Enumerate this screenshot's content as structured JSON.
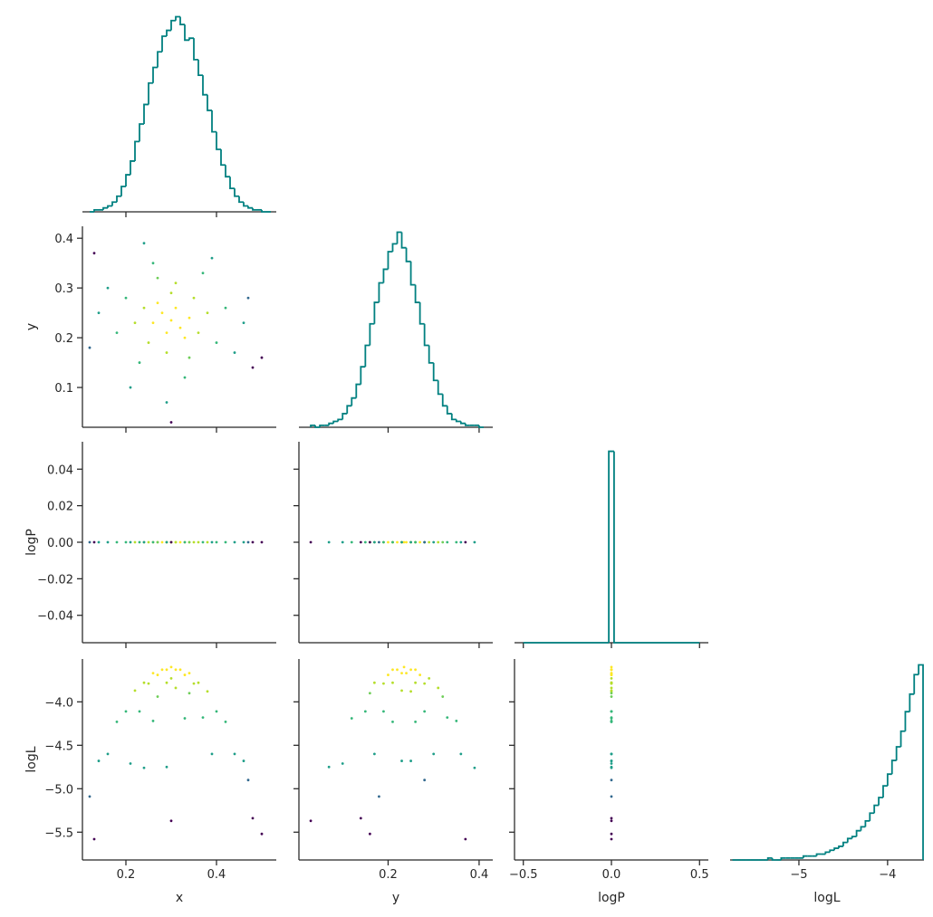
{
  "chart_data": [
    {
      "type": "histogram",
      "color": "#008080",
      "bins": [
        0.12,
        0.13,
        0.14,
        0.15,
        0.16,
        0.17,
        0.18,
        0.19,
        0.2,
        0.21,
        0.22,
        0.23,
        0.24,
        0.25,
        0.26,
        0.27,
        0.28,
        0.29,
        0.3,
        0.31,
        0.32,
        0.33,
        0.34,
        0.35,
        0.36,
        0.37,
        0.38,
        0.39,
        0.4,
        0.41,
        0.42,
        0.43,
        0.44,
        0.45,
        0.46,
        0.47,
        0.48,
        0.49,
        0.5,
        0.51,
        0.52
      ],
      "counts": [
        0,
        1,
        1,
        2,
        3,
        5,
        8,
        13,
        19,
        26,
        36,
        45,
        55,
        66,
        74,
        82,
        90,
        93,
        98,
        100,
        96,
        88,
        89,
        78,
        70,
        60,
        52,
        41,
        32,
        24,
        18,
        12,
        8,
        5,
        3,
        2,
        1,
        1,
        0,
        0
      ],
      "xlim": [
        0.104,
        0.532
      ],
      "ylim": [
        0,
        103
      ],
      "xticks": [
        0.2,
        0.4
      ]
    },
    {
      "type": "scatter",
      "ylabel": "y",
      "xlim": [
        0.104,
        0.532
      ],
      "ylim": [
        0.02,
        0.424
      ],
      "xticks": [
        0.2,
        0.4
      ],
      "yticks": [
        0.1,
        0.2,
        0.3,
        0.4
      ],
      "x": [
        0.3,
        0.28,
        0.32,
        0.29,
        0.31,
        0.26,
        0.34,
        0.27,
        0.33,
        0.3,
        0.25,
        0.35,
        0.24,
        0.36,
        0.29,
        0.31,
        0.22,
        0.38,
        0.27,
        0.34,
        0.2,
        0.4,
        0.23,
        0.37,
        0.18,
        0.42,
        0.26,
        0.33,
        0.16,
        0.44,
        0.21,
        0.39,
        0.14,
        0.46,
        0.29,
        0.24,
        0.13,
        0.48,
        0.5,
        0.3,
        0.12,
        0.47
      ],
      "y": [
        0.235,
        0.25,
        0.22,
        0.21,
        0.26,
        0.23,
        0.24,
        0.27,
        0.2,
        0.29,
        0.19,
        0.28,
        0.26,
        0.21,
        0.17,
        0.31,
        0.23,
        0.25,
        0.32,
        0.16,
        0.28,
        0.19,
        0.15,
        0.33,
        0.21,
        0.26,
        0.35,
        0.12,
        0.3,
        0.17,
        0.1,
        0.36,
        0.25,
        0.23,
        0.07,
        0.39,
        0.37,
        0.14,
        0.16,
        0.03,
        0.18,
        0.28
      ],
      "colors": [
        "#fde725",
        "#fde725",
        "#fde725",
        "#fde725",
        "#fde725",
        "#fde725",
        "#fde725",
        "#fde725",
        "#fde725",
        "#b5de2b",
        "#b5de2b",
        "#b5de2b",
        "#b5de2b",
        "#b5de2b",
        "#b5de2b",
        "#b5de2b",
        "#b5de2b",
        "#b5de2b",
        "#6ece58",
        "#6ece58",
        "#35b779",
        "#35b779",
        "#35b779",
        "#35b779",
        "#35b779",
        "#35b779",
        "#35b779",
        "#35b779",
        "#1f9e89",
        "#1f9e89",
        "#1f9e89",
        "#1f9e89",
        "#1f9e89",
        "#1f9e89",
        "#1f9e89",
        "#1f9e89",
        "#440154",
        "#440154",
        "#440154",
        "#440154",
        "#31688e",
        "#31688e"
      ]
    },
    {
      "type": "histogram",
      "color": "#008080",
      "bins": [
        0.03,
        0.04,
        0.05,
        0.06,
        0.07,
        0.08,
        0.09,
        0.1,
        0.11,
        0.12,
        0.13,
        0.14,
        0.15,
        0.16,
        0.17,
        0.18,
        0.19,
        0.2,
        0.21,
        0.22,
        0.23,
        0.24,
        0.25,
        0.26,
        0.27,
        0.28,
        0.29,
        0.3,
        0.31,
        0.32,
        0.33,
        0.34,
        0.35,
        0.36,
        0.37,
        0.38,
        0.39,
        0.4,
        0.41
      ],
      "counts": [
        1,
        0,
        1,
        1,
        2,
        3,
        4,
        7,
        11,
        15,
        22,
        31,
        42,
        53,
        64,
        74,
        81,
        90,
        94,
        100,
        92,
        85,
        73,
        64,
        53,
        42,
        33,
        24,
        17,
        11,
        7,
        4,
        3,
        2,
        1,
        1,
        1,
        0
      ],
      "xlim": [
        0.004,
        0.43
      ],
      "ylim": [
        0,
        103
      ],
      "xticks": [
        0.2,
        0.4
      ]
    },
    {
      "type": "scatter",
      "ylabel": "logP",
      "xlim": [
        0.104,
        0.532
      ],
      "ylim": [
        -0.055,
        0.055
      ],
      "xticks": [
        0.2,
        0.4
      ],
      "yticks": [
        {
          "value": -0.04,
          "label": "−0.04"
        },
        {
          "value": -0.02,
          "label": "−0.02"
        },
        {
          "value": 0,
          "label": "0.00"
        },
        0.02,
        0.04
      ],
      "x": [
        0.3,
        0.28,
        0.32,
        0.29,
        0.31,
        0.26,
        0.34,
        0.27,
        0.33,
        0.3,
        0.25,
        0.35,
        0.24,
        0.36,
        0.29,
        0.31,
        0.22,
        0.38,
        0.27,
        0.34,
        0.2,
        0.4,
        0.23,
        0.37,
        0.18,
        0.42,
        0.26,
        0.33,
        0.16,
        0.44,
        0.21,
        0.39,
        0.14,
        0.46,
        0.29,
        0.24,
        0.13,
        0.48,
        0.5,
        0.3,
        0.12,
        0.47
      ],
      "y": [
        0,
        0,
        0,
        0,
        0,
        0,
        0,
        0,
        0,
        0,
        0,
        0,
        0,
        0,
        0,
        0,
        0,
        0,
        0,
        0,
        0,
        0,
        0,
        0,
        0,
        0,
        0,
        0,
        0,
        0,
        0,
        0,
        0,
        0,
        0,
        0,
        0,
        0,
        0,
        0,
        0,
        0
      ],
      "colors": [
        "#fde725",
        "#fde725",
        "#fde725",
        "#fde725",
        "#fde725",
        "#fde725",
        "#fde725",
        "#fde725",
        "#fde725",
        "#b5de2b",
        "#b5de2b",
        "#b5de2b",
        "#b5de2b",
        "#b5de2b",
        "#b5de2b",
        "#b5de2b",
        "#b5de2b",
        "#b5de2b",
        "#6ece58",
        "#6ece58",
        "#35b779",
        "#35b779",
        "#35b779",
        "#35b779",
        "#35b779",
        "#35b779",
        "#35b779",
        "#35b779",
        "#1f9e89",
        "#1f9e89",
        "#1f9e89",
        "#1f9e89",
        "#1f9e89",
        "#1f9e89",
        "#1f9e89",
        "#1f9e89",
        "#440154",
        "#440154",
        "#440154",
        "#440154",
        "#31688e",
        "#31688e"
      ]
    },
    {
      "type": "scatter",
      "xlim": [
        0.004,
        0.43
      ],
      "ylim": [
        -0.055,
        0.055
      ],
      "xticks": [
        0.2,
        0.4
      ],
      "yticks": [
        -0.04,
        -0.02,
        0,
        0.02,
        0.04
      ],
      "x": [
        0.235,
        0.25,
        0.22,
        0.21,
        0.26,
        0.23,
        0.24,
        0.27,
        0.2,
        0.29,
        0.19,
        0.28,
        0.26,
        0.21,
        0.17,
        0.31,
        0.23,
        0.25,
        0.32,
        0.16,
        0.28,
        0.19,
        0.15,
        0.33,
        0.21,
        0.26,
        0.35,
        0.12,
        0.3,
        0.17,
        0.1,
        0.36,
        0.25,
        0.23,
        0.07,
        0.39,
        0.37,
        0.14,
        0.16,
        0.03,
        0.18,
        0.28
      ],
      "y": [
        0,
        0,
        0,
        0,
        0,
        0,
        0,
        0,
        0,
        0,
        0,
        0,
        0,
        0,
        0,
        0,
        0,
        0,
        0,
        0,
        0,
        0,
        0,
        0,
        0,
        0,
        0,
        0,
        0,
        0,
        0,
        0,
        0,
        0,
        0,
        0,
        0,
        0,
        0,
        0,
        0,
        0
      ],
      "colors": [
        "#fde725",
        "#fde725",
        "#fde725",
        "#fde725",
        "#fde725",
        "#fde725",
        "#fde725",
        "#fde725",
        "#fde725",
        "#b5de2b",
        "#b5de2b",
        "#b5de2b",
        "#b5de2b",
        "#b5de2b",
        "#b5de2b",
        "#b5de2b",
        "#b5de2b",
        "#b5de2b",
        "#6ece58",
        "#6ece58",
        "#35b779",
        "#35b779",
        "#35b779",
        "#35b779",
        "#35b779",
        "#35b779",
        "#35b779",
        "#35b779",
        "#1f9e89",
        "#1f9e89",
        "#1f9e89",
        "#1f9e89",
        "#1f9e89",
        "#1f9e89",
        "#1f9e89",
        "#1f9e89",
        "#440154",
        "#440154",
        "#440154",
        "#440154",
        "#31688e",
        "#31688e"
      ]
    },
    {
      "type": "histogram",
      "color": "#008080",
      "bins": [
        -0.5,
        -0.015,
        0.015,
        0.5
      ],
      "counts": [
        0,
        100,
        0
      ],
      "xlim": [
        -0.55,
        0.55
      ],
      "ylim": [
        0,
        105
      ],
      "xticks": [
        -0.5,
        0,
        0.5
      ]
    },
    {
      "type": "scatter",
      "xlabel": "x",
      "ylabel": "logL",
      "xlim": [
        0.104,
        0.532
      ],
      "ylim": [
        -5.82,
        -3.507
      ],
      "xticks": [
        0.2,
        0.4
      ],
      "yticks": [
        {
          "value": -5.5,
          "label": "−5.5"
        },
        {
          "value": -5.0,
          "label": "−5.0"
        },
        {
          "value": -4.5,
          "label": "−4.5"
        },
        {
          "value": -4.0,
          "label": "−4.0"
        }
      ],
      "x": [
        0.3,
        0.28,
        0.32,
        0.29,
        0.31,
        0.26,
        0.34,
        0.27,
        0.33,
        0.3,
        0.25,
        0.35,
        0.24,
        0.36,
        0.29,
        0.31,
        0.22,
        0.38,
        0.27,
        0.34,
        0.2,
        0.4,
        0.23,
        0.37,
        0.18,
        0.42,
        0.26,
        0.33,
        0.16,
        0.44,
        0.21,
        0.39,
        0.14,
        0.46,
        0.29,
        0.24,
        0.13,
        0.48,
        0.5,
        0.3,
        0.12,
        0.47
      ],
      "y": [
        -3.6,
        -3.63,
        -3.63,
        -3.63,
        -3.63,
        -3.67,
        -3.67,
        -3.69,
        -3.69,
        -3.73,
        -3.79,
        -3.79,
        -3.78,
        -3.78,
        -3.78,
        -3.84,
        -3.87,
        -3.88,
        -3.94,
        -3.9,
        -4.11,
        -4.11,
        -4.11,
        -4.18,
        -4.23,
        -4.23,
        -4.22,
        -4.19,
        -4.6,
        -4.6,
        -4.71,
        -4.6,
        -4.68,
        -4.68,
        -4.75,
        -4.76,
        -5.58,
        -5.34,
        -5.52,
        -5.37,
        -5.09,
        -4.9
      ],
      "colors": [
        "#fde725",
        "#fde725",
        "#fde725",
        "#fde725",
        "#fde725",
        "#fde725",
        "#fde725",
        "#fde725",
        "#fde725",
        "#b5de2b",
        "#b5de2b",
        "#b5de2b",
        "#b5de2b",
        "#b5de2b",
        "#b5de2b",
        "#b5de2b",
        "#b5de2b",
        "#b5de2b",
        "#6ece58",
        "#6ece58",
        "#35b779",
        "#35b779",
        "#35b779",
        "#35b779",
        "#35b779",
        "#35b779",
        "#35b779",
        "#35b779",
        "#1f9e89",
        "#1f9e89",
        "#1f9e89",
        "#1f9e89",
        "#1f9e89",
        "#1f9e89",
        "#1f9e89",
        "#1f9e89",
        "#440154",
        "#440154",
        "#440154",
        "#440154",
        "#31688e",
        "#31688e"
      ]
    },
    {
      "type": "scatter",
      "xlabel": "y",
      "xlim": [
        0.004,
        0.43
      ],
      "ylim": [
        -5.82,
        -3.507
      ],
      "xticks": [
        0.2,
        0.4
      ],
      "yticks": [
        -5.5,
        -5.0,
        -4.5,
        -4.0
      ],
      "x": [
        0.235,
        0.25,
        0.22,
        0.21,
        0.26,
        0.23,
        0.24,
        0.27,
        0.2,
        0.29,
        0.19,
        0.28,
        0.26,
        0.21,
        0.17,
        0.31,
        0.23,
        0.25,
        0.32,
        0.16,
        0.28,
        0.19,
        0.15,
        0.33,
        0.21,
        0.26,
        0.35,
        0.12,
        0.3,
        0.17,
        0.1,
        0.36,
        0.25,
        0.23,
        0.07,
        0.39,
        0.37,
        0.14,
        0.16,
        0.03,
        0.18,
        0.28
      ],
      "y": [
        -3.6,
        -3.63,
        -3.63,
        -3.63,
        -3.63,
        -3.67,
        -3.67,
        -3.69,
        -3.69,
        -3.73,
        -3.79,
        -3.79,
        -3.78,
        -3.78,
        -3.78,
        -3.84,
        -3.87,
        -3.88,
        -3.94,
        -3.9,
        -4.11,
        -4.11,
        -4.11,
        -4.18,
        -4.23,
        -4.23,
        -4.22,
        -4.19,
        -4.6,
        -4.6,
        -4.71,
        -4.6,
        -4.68,
        -4.68,
        -4.75,
        -4.76,
        -5.58,
        -5.34,
        -5.52,
        -5.37,
        -5.09,
        -4.9
      ],
      "colors": [
        "#fde725",
        "#fde725",
        "#fde725",
        "#fde725",
        "#fde725",
        "#fde725",
        "#fde725",
        "#fde725",
        "#fde725",
        "#b5de2b",
        "#b5de2b",
        "#b5de2b",
        "#b5de2b",
        "#b5de2b",
        "#b5de2b",
        "#b5de2b",
        "#b5de2b",
        "#b5de2b",
        "#6ece58",
        "#6ece58",
        "#35b779",
        "#35b779",
        "#35b779",
        "#35b779",
        "#35b779",
        "#35b779",
        "#35b779",
        "#35b779",
        "#1f9e89",
        "#1f9e89",
        "#1f9e89",
        "#1f9e89",
        "#1f9e89",
        "#1f9e89",
        "#1f9e89",
        "#1f9e89",
        "#440154",
        "#440154",
        "#440154",
        "#440154",
        "#31688e",
        "#31688e"
      ]
    },
    {
      "type": "scatter",
      "xlabel": "logP",
      "xlim": [
        -0.55,
        0.55
      ],
      "ylim": [
        -5.82,
        -3.507
      ],
      "xticks": [
        {
          "value": -0.5,
          "label": "−0.5"
        },
        {
          "value": 0,
          "label": "0.0"
        },
        0.5
      ],
      "yticks": [
        -5.5,
        -5.0,
        -4.5,
        -4.0
      ],
      "x": [
        0,
        0,
        0,
        0,
        0,
        0,
        0,
        0,
        0,
        0,
        0,
        0,
        0,
        0,
        0,
        0,
        0,
        0,
        0,
        0,
        0,
        0,
        0,
        0,
        0,
        0,
        0,
        0,
        0,
        0,
        0,
        0,
        0,
        0,
        0,
        0,
        0,
        0,
        0,
        0,
        0,
        0
      ],
      "y": [
        -3.6,
        -3.63,
        -3.63,
        -3.63,
        -3.63,
        -3.67,
        -3.67,
        -3.69,
        -3.69,
        -3.73,
        -3.79,
        -3.79,
        -3.78,
        -3.78,
        -3.78,
        -3.84,
        -3.87,
        -3.88,
        -3.94,
        -3.9,
        -4.11,
        -4.11,
        -4.11,
        -4.18,
        -4.23,
        -4.23,
        -4.22,
        -4.19,
        -4.6,
        -4.6,
        -4.71,
        -4.6,
        -4.68,
        -4.68,
        -4.75,
        -4.76,
        -5.58,
        -5.34,
        -5.52,
        -5.37,
        -5.09,
        -4.9
      ],
      "colors": [
        "#fde725",
        "#fde725",
        "#fde725",
        "#fde725",
        "#fde725",
        "#fde725",
        "#fde725",
        "#fde725",
        "#fde725",
        "#b5de2b",
        "#b5de2b",
        "#b5de2b",
        "#b5de2b",
        "#b5de2b",
        "#b5de2b",
        "#b5de2b",
        "#b5de2b",
        "#b5de2b",
        "#6ece58",
        "#6ece58",
        "#35b779",
        "#35b779",
        "#35b779",
        "#35b779",
        "#35b779",
        "#35b779",
        "#35b779",
        "#35b779",
        "#1f9e89",
        "#1f9e89",
        "#1f9e89",
        "#1f9e89",
        "#1f9e89",
        "#1f9e89",
        "#1f9e89",
        "#1f9e89",
        "#440154",
        "#440154",
        "#440154",
        "#440154",
        "#31688e",
        "#31688e"
      ]
    },
    {
      "type": "histogram",
      "xlabel": "logL",
      "color": "#008080",
      "bins": [
        -5.75,
        -5.7,
        -5.65,
        -5.6,
        -5.55,
        -5.5,
        -5.45,
        -5.4,
        -5.35,
        -5.3,
        -5.25,
        -5.2,
        -5.15,
        -5.1,
        -5.05,
        -5.0,
        -4.95,
        -4.9,
        -4.85,
        -4.8,
        -4.75,
        -4.7,
        -4.65,
        -4.6,
        -4.55,
        -4.5,
        -4.45,
        -4.4,
        -4.35,
        -4.3,
        -4.25,
        -4.2,
        -4.15,
        -4.1,
        -4.05,
        -4.0,
        -3.95,
        -3.9,
        -3.85,
        -3.8,
        -3.75,
        -3.7,
        -3.65,
        -3.6
      ],
      "counts": [
        0,
        0,
        0,
        0,
        0,
        0,
        0,
        0,
        1,
        0,
        0,
        1,
        1,
        1,
        1,
        1,
        2,
        2,
        2,
        3,
        3,
        4,
        5,
        6,
        7,
        9,
        11,
        12,
        15,
        17,
        20,
        24,
        28,
        32,
        38,
        44,
        51,
        58,
        66,
        76,
        85,
        95,
        100
      ],
      "xlim": [
        -5.776,
        -3.59
      ],
      "ylim": [
        0,
        103
      ],
      "xticks": [
        {
          "value": -5,
          "label": "−5"
        },
        {
          "value": -4,
          "label": "−4"
        }
      ]
    }
  ]
}
